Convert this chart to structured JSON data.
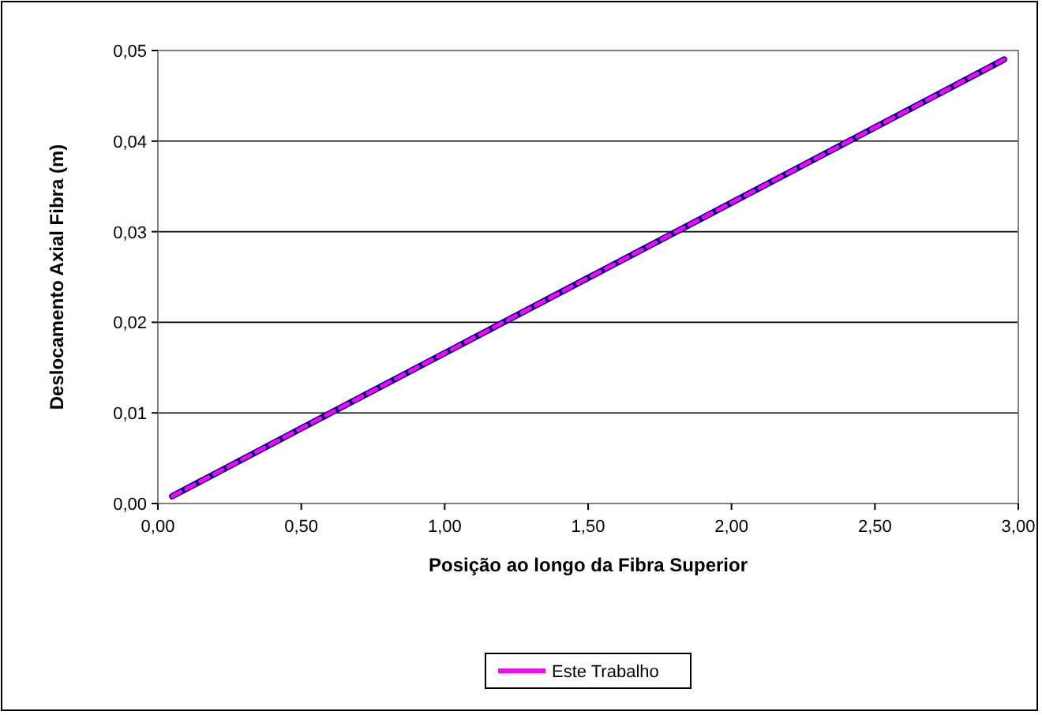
{
  "chart_data": {
    "type": "line",
    "xlabel": "Posição ao longo da Fibra Superior",
    "ylabel": "Deslocamento Axial Fibra (m)",
    "xlim": [
      0,
      3
    ],
    "ylim": [
      0,
      0.05
    ],
    "xticks": [
      {
        "value": 0,
        "label": "0,00"
      },
      {
        "value": 0.5,
        "label": "0,50"
      },
      {
        "value": 1,
        "label": "1,00"
      },
      {
        "value": 1.5,
        "label": "1,50"
      },
      {
        "value": 2,
        "label": "2,00"
      },
      {
        "value": 2.5,
        "label": "2,50"
      },
      {
        "value": 3,
        "label": "3,00"
      }
    ],
    "yticks": [
      {
        "value": 0,
        "label": "0,00"
      },
      {
        "value": 0.01,
        "label": "0,01"
      },
      {
        "value": 0.02,
        "label": "0,02"
      },
      {
        "value": 0.03,
        "label": "0,03"
      },
      {
        "value": 0.04,
        "label": "0,04"
      },
      {
        "value": 0.05,
        "label": "0,05"
      }
    ],
    "grid": "y",
    "legend": "bottom",
    "marker": "none",
    "series": [
      {
        "color": "#000080",
        "line_style": "solid",
        "x": [
          0.05,
          0.5,
          1.0,
          1.5,
          2.0,
          2.5,
          2.95
        ],
        "values": [
          0.0008,
          0.0083,
          0.0166,
          0.0249,
          0.0332,
          0.0415,
          0.049
        ]
      },
      {
        "name": "Este Trabalho",
        "color": "#ff00ff",
        "line_style": "dashed",
        "x": [
          0.05,
          0.5,
          1.0,
          1.5,
          2.0,
          2.5,
          2.95
        ],
        "values": [
          0.0008,
          0.0083,
          0.0166,
          0.0249,
          0.0332,
          0.0415,
          0.049
        ]
      }
    ]
  }
}
